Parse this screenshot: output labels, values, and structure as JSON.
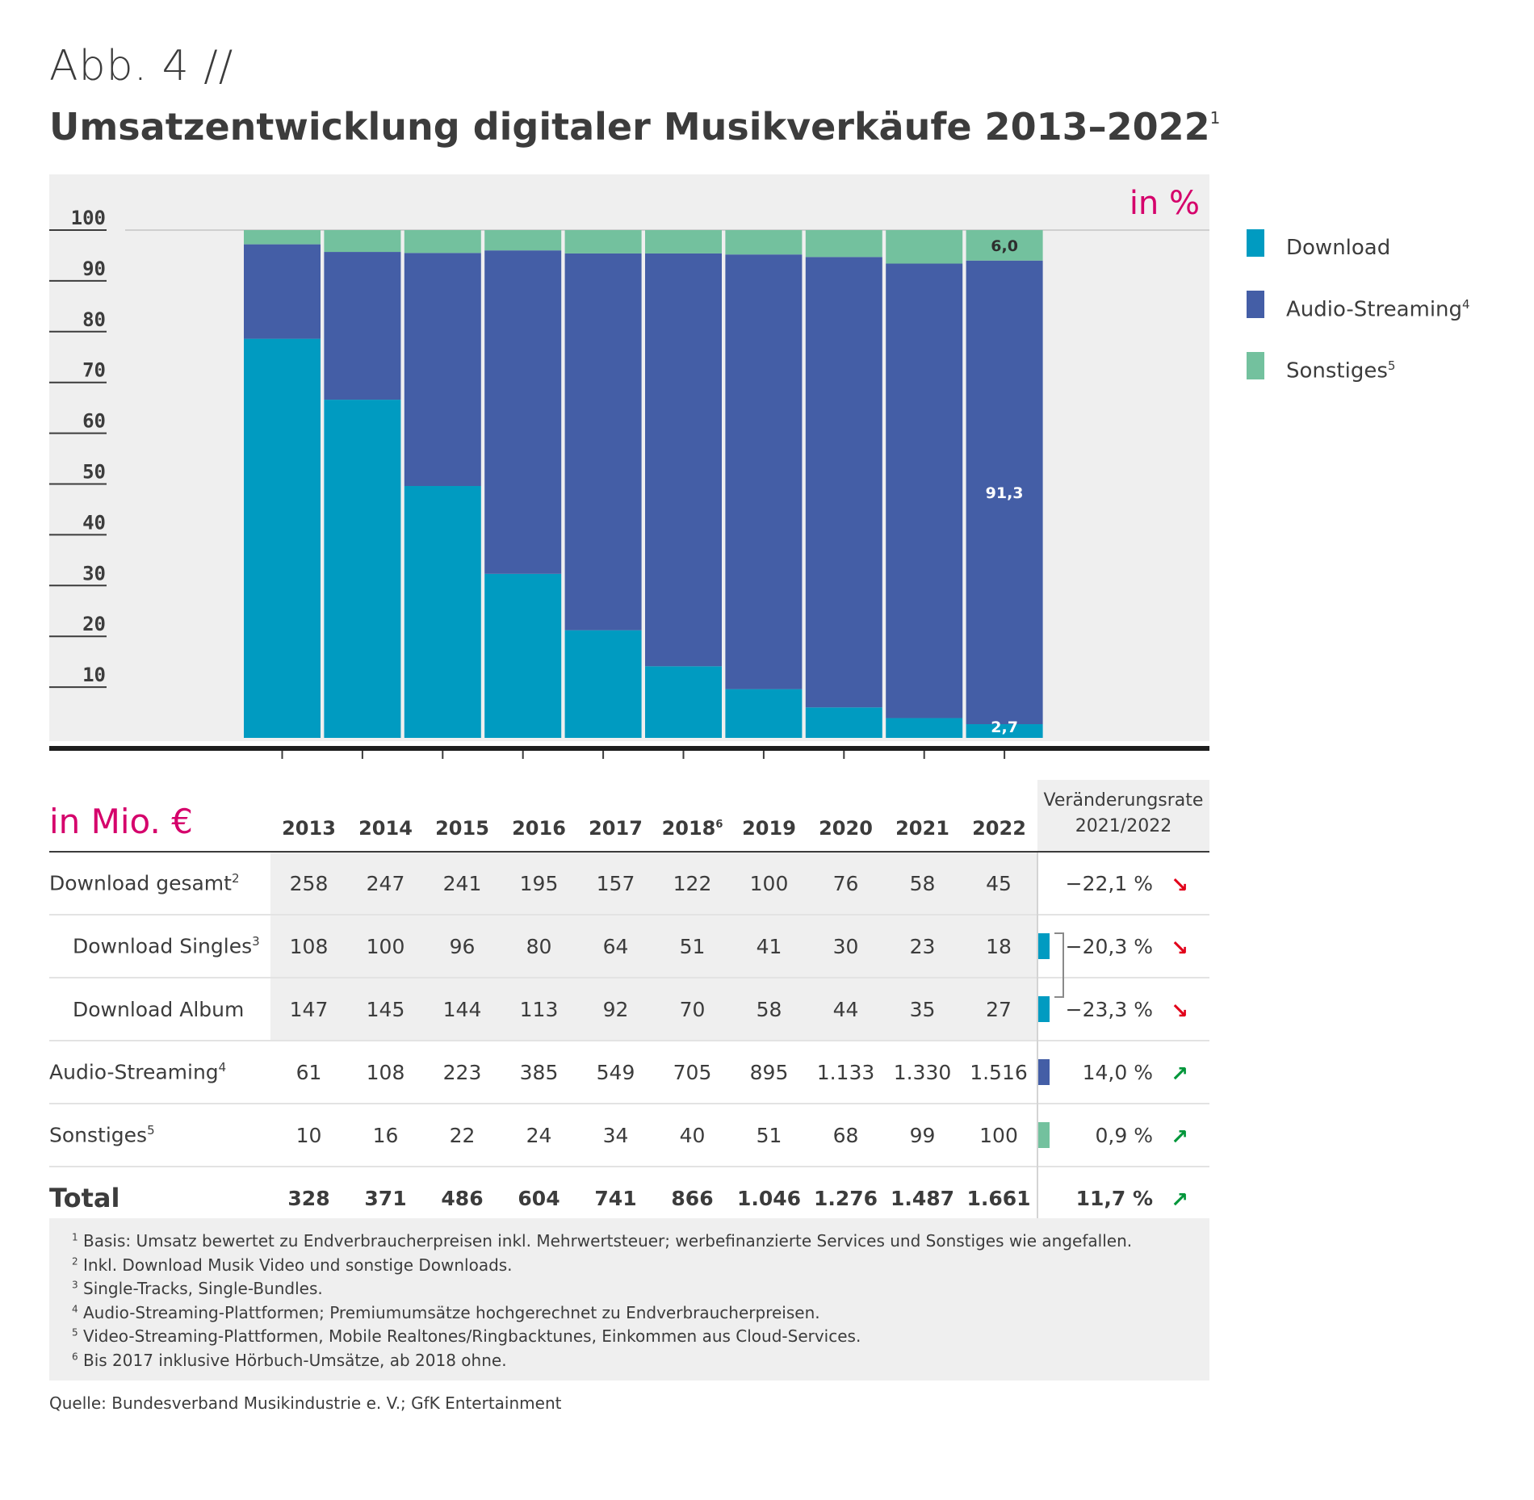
{
  "header": {
    "kicker": "Abb. 4 //",
    "title": "Umsatzentwicklung digitaler Musikverkäufe 2013–2022",
    "title_note": "1"
  },
  "chart_data": {
    "type": "bar",
    "stacked": true,
    "unit_label": "in %",
    "categories": [
      "2013",
      "2014",
      "2015",
      "2016",
      "2017",
      "2018",
      "2019",
      "2020",
      "2021",
      "2022"
    ],
    "series": [
      {
        "name": "Download",
        "color": "#009bc1",
        "values": [
          78.6,
          66.6,
          49.6,
          32.3,
          21.2,
          14.1,
          9.6,
          6.0,
          3.9,
          2.7
        ]
      },
      {
        "name": "Audio-Streaming",
        "note": "4",
        "color": "#445ea6",
        "values": [
          18.6,
          29.1,
          45.9,
          63.7,
          74.2,
          81.3,
          85.6,
          88.7,
          89.5,
          91.3
        ]
      },
      {
        "name": "Sonstiges",
        "note": "5",
        "color": "#73c19e",
        "values": [
          2.8,
          4.3,
          4.5,
          4.0,
          4.6,
          4.6,
          4.8,
          5.3,
          6.6,
          6.0
        ]
      }
    ],
    "data_labels": [
      {
        "category": "2022",
        "series": "Sonstiges",
        "text": "6,0"
      },
      {
        "category": "2022",
        "series": "Audio-Streaming",
        "text": "91,3"
      },
      {
        "category": "2022",
        "series": "Download",
        "text": "2,7"
      }
    ],
    "yticks": [
      "10",
      "20",
      "30",
      "40",
      "50",
      "60",
      "70",
      "80",
      "90",
      "100"
    ],
    "ylim": [
      0,
      100
    ],
    "legend_position": "right"
  },
  "table": {
    "unit_label": "in Mio. €",
    "headers": [
      {
        "text": "2013"
      },
      {
        "text": "2014"
      },
      {
        "text": "2015"
      },
      {
        "text": "2016"
      },
      {
        "text": "2017"
      },
      {
        "text": "2018",
        "note": "6"
      },
      {
        "text": "2019"
      },
      {
        "text": "2020"
      },
      {
        "text": "2021"
      },
      {
        "text": "2022"
      }
    ],
    "change_header": [
      "Veränderungsrate",
      "2021/2022"
    ],
    "rows": [
      {
        "label": "Download gesamt",
        "note": "2",
        "values": [
          "258",
          "247",
          "241",
          "195",
          "157",
          "122",
          "100",
          "76",
          "58",
          "45"
        ],
        "change": "−22,1 %",
        "direction": "down"
      },
      {
        "label": "Download Singles",
        "note": "3",
        "values": [
          "108",
          "100",
          "96",
          "80",
          "64",
          "51",
          "41",
          "30",
          "23",
          "18"
        ],
        "change": "−20,3 %",
        "direction": "down",
        "marker": "#009bc1"
      },
      {
        "label": "Download Album",
        "values": [
          "147",
          "145",
          "144",
          "113",
          "92",
          "70",
          "58",
          "44",
          "35",
          "27"
        ],
        "change": "−23,3 %",
        "direction": "down",
        "marker": "#009bc1"
      },
      {
        "label": "Audio-Streaming",
        "note": "4",
        "values": [
          "61",
          "108",
          "223",
          "385",
          "549",
          "705",
          "895",
          "1.133",
          "1.330",
          "1.516"
        ],
        "change": "14,0 %",
        "direction": "up",
        "marker": "#445ea6"
      },
      {
        "label": "Sonstiges",
        "note": "5",
        "values": [
          "10",
          "16",
          "22",
          "24",
          "34",
          "40",
          "51",
          "68",
          "99",
          "100"
        ],
        "change": "0,9 %",
        "direction": "up",
        "marker": "#73c19e"
      },
      {
        "label": "Total",
        "values": [
          "328",
          "371",
          "486",
          "604",
          "741",
          "866",
          "1.046",
          "1.276",
          "1.487",
          "1.661"
        ],
        "change": "11,7 %",
        "direction": "up"
      }
    ],
    "arrow_down_icon": "arrow-down-right-icon",
    "arrow_up_icon": "arrow-up-right-icon"
  },
  "footnotes": [
    {
      "num": "1",
      "text": "Basis: Umsatz bewertet zu Endverbraucherpreisen inkl. Mehrwertsteuer; werbefinanzierte Services und Sonstiges wie angefallen."
    },
    {
      "num": "2",
      "text": "Inkl. Download Musik Video und sonstige Downloads."
    },
    {
      "num": "3",
      "text": "Single-Tracks, Single-Bundles."
    },
    {
      "num": "4",
      "text": "Audio-Streaming-Plattformen; Premiumumsätze hochgerechnet zu Endverbraucherpreisen."
    },
    {
      "num": "5",
      "text": "Video-Streaming-Plattformen, Mobile Realtones/Ringbacktunes, Einkommen aus Cloud-Services."
    },
    {
      "num": "6",
      "text": "Bis 2017 inklusive Hörbuch-Umsätze, ab 2018 ohne."
    }
  ],
  "source": "Quelle: Bundesverband Musikindustrie e. V.; GfK Entertainment",
  "colors": {
    "accent": "#d5006b",
    "download": "#009bc1",
    "streaming": "#445ea6",
    "other": "#73c19e",
    "panel": "#efefef"
  }
}
